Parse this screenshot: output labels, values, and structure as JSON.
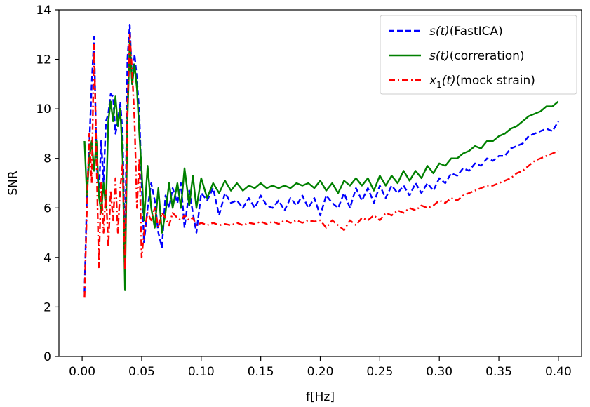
{
  "chart_data": {
    "type": "line",
    "title": "",
    "xlabel": "f[Hz]",
    "ylabel": "SNR",
    "xlim": [
      -0.0195,
      0.4195
    ],
    "ylim": [
      0,
      14
    ],
    "xticks": [
      0.0,
      0.05,
      0.1,
      0.15,
      0.2,
      0.25,
      0.3,
      0.35,
      0.4
    ],
    "xtick_labels": [
      "0.00",
      "0.05",
      "0.10",
      "0.15",
      "0.20",
      "0.25",
      "0.30",
      "0.35",
      "0.40"
    ],
    "yticks": [
      0,
      2,
      4,
      6,
      8,
      10,
      12,
      14
    ],
    "ytick_labels": [
      "0",
      "2",
      "4",
      "6",
      "8",
      "10",
      "12",
      "14"
    ],
    "grid": false,
    "legend_position": "top-right",
    "series": [
      {
        "name_prefix": "s",
        "name_arg": "(t)",
        "name_suffix": "(FastICA)",
        "color": "#0000ff",
        "style": "dashed",
        "x": [
          0.002,
          0.004,
          0.006,
          0.008,
          0.01,
          0.012,
          0.014,
          0.016,
          0.018,
          0.02,
          0.022,
          0.024,
          0.026,
          0.028,
          0.03,
          0.032,
          0.034,
          0.036,
          0.038,
          0.04,
          0.042,
          0.044,
          0.046,
          0.048,
          0.05,
          0.052,
          0.055,
          0.058,
          0.061,
          0.064,
          0.067,
          0.07,
          0.073,
          0.076,
          0.08,
          0.083,
          0.086,
          0.09,
          0.093,
          0.096,
          0.1,
          0.105,
          0.11,
          0.115,
          0.12,
          0.125,
          0.13,
          0.135,
          0.14,
          0.145,
          0.15,
          0.155,
          0.16,
          0.165,
          0.17,
          0.175,
          0.18,
          0.185,
          0.19,
          0.195,
          0.2,
          0.205,
          0.21,
          0.215,
          0.22,
          0.225,
          0.23,
          0.235,
          0.24,
          0.245,
          0.25,
          0.255,
          0.26,
          0.265,
          0.27,
          0.275,
          0.28,
          0.285,
          0.29,
          0.295,
          0.3,
          0.305,
          0.31,
          0.315,
          0.32,
          0.325,
          0.33,
          0.335,
          0.34,
          0.345,
          0.35,
          0.355,
          0.36,
          0.365,
          0.37,
          0.375,
          0.38,
          0.385,
          0.39,
          0.395,
          0.4
        ],
        "y": [
          2.6,
          6.5,
          8.5,
          11.0,
          12.9,
          8.0,
          6.5,
          8.7,
          7.0,
          9.5,
          9.8,
          10.6,
          10.5,
          9.0,
          9.5,
          10.3,
          9.0,
          4.0,
          12.0,
          13.4,
          11.0,
          12.2,
          11.2,
          9.8,
          7.0,
          4.6,
          6.0,
          7.0,
          6.3,
          5.0,
          4.4,
          6.5,
          6.0,
          6.8,
          6.2,
          7.0,
          5.2,
          6.7,
          5.8,
          5.0,
          6.6,
          6.3,
          6.8,
          5.7,
          6.6,
          6.2,
          6.3,
          6.0,
          6.4,
          6.0,
          6.5,
          6.1,
          6.0,
          6.3,
          5.9,
          6.4,
          6.1,
          6.5,
          6.0,
          6.4,
          5.7,
          6.5,
          6.2,
          6.0,
          6.6,
          6.0,
          6.8,
          6.3,
          6.8,
          6.2,
          6.9,
          6.4,
          6.9,
          6.6,
          6.9,
          6.5,
          7.0,
          6.6,
          7.0,
          6.7,
          7.2,
          7.0,
          7.4,
          7.3,
          7.6,
          7.5,
          7.8,
          7.7,
          8.0,
          7.9,
          8.1,
          8.1,
          8.4,
          8.5,
          8.6,
          8.9,
          9.0,
          9.1,
          9.2,
          9.1,
          9.5
        ]
      },
      {
        "name_prefix": "s",
        "name_arg": "(t)",
        "name_suffix": "(correration)",
        "color": "#008000",
        "style": "solid",
        "x": [
          0.002,
          0.004,
          0.006,
          0.008,
          0.01,
          0.012,
          0.014,
          0.016,
          0.018,
          0.02,
          0.022,
          0.024,
          0.026,
          0.028,
          0.03,
          0.032,
          0.034,
          0.036,
          0.038,
          0.04,
          0.042,
          0.044,
          0.046,
          0.048,
          0.05,
          0.052,
          0.055,
          0.058,
          0.061,
          0.064,
          0.067,
          0.07,
          0.073,
          0.076,
          0.08,
          0.083,
          0.086,
          0.09,
          0.093,
          0.096,
          0.1,
          0.105,
          0.11,
          0.115,
          0.12,
          0.125,
          0.13,
          0.135,
          0.14,
          0.145,
          0.15,
          0.155,
          0.16,
          0.165,
          0.17,
          0.175,
          0.18,
          0.185,
          0.19,
          0.195,
          0.2,
          0.205,
          0.21,
          0.215,
          0.22,
          0.225,
          0.23,
          0.235,
          0.24,
          0.245,
          0.25,
          0.255,
          0.26,
          0.265,
          0.27,
          0.275,
          0.28,
          0.285,
          0.29,
          0.295,
          0.3,
          0.305,
          0.31,
          0.315,
          0.32,
          0.325,
          0.33,
          0.335,
          0.34,
          0.345,
          0.35,
          0.355,
          0.36,
          0.365,
          0.37,
          0.375,
          0.38,
          0.385,
          0.39,
          0.395,
          0.4
        ],
        "y": [
          8.7,
          6.5,
          8.0,
          8.7,
          7.5,
          8.7,
          6.5,
          5.8,
          7.0,
          6.0,
          9.5,
          10.3,
          9.5,
          10.5,
          9.3,
          10.0,
          8.0,
          2.7,
          9.5,
          12.7,
          11.0,
          11.8,
          10.8,
          9.0,
          7.5,
          5.5,
          7.7,
          6.0,
          5.2,
          6.8,
          5.0,
          5.8,
          7.0,
          6.0,
          7.0,
          6.0,
          7.6,
          6.1,
          7.3,
          6.0,
          7.2,
          6.4,
          7.0,
          6.6,
          7.1,
          6.7,
          7.0,
          6.7,
          6.9,
          6.8,
          7.0,
          6.8,
          6.9,
          6.8,
          6.9,
          6.8,
          7.0,
          6.9,
          7.0,
          6.8,
          7.1,
          6.7,
          7.0,
          6.6,
          7.1,
          6.9,
          7.2,
          6.9,
          7.2,
          6.7,
          7.3,
          6.9,
          7.3,
          7.0,
          7.5,
          7.1,
          7.5,
          7.2,
          7.7,
          7.4,
          7.8,
          7.7,
          8.0,
          8.0,
          8.2,
          8.3,
          8.5,
          8.4,
          8.7,
          8.7,
          8.9,
          9.0,
          9.2,
          9.3,
          9.5,
          9.7,
          9.8,
          9.9,
          10.1,
          10.1,
          10.3
        ]
      },
      {
        "name_prefix": "x",
        "name_sub": "1",
        "name_arg": "(t)",
        "name_suffix": "(mock strain)",
        "color": "#ff0000",
        "style": "dashdot",
        "x": [
          0.002,
          0.004,
          0.006,
          0.008,
          0.01,
          0.012,
          0.014,
          0.016,
          0.018,
          0.02,
          0.022,
          0.024,
          0.026,
          0.028,
          0.03,
          0.032,
          0.034,
          0.036,
          0.038,
          0.04,
          0.042,
          0.044,
          0.046,
          0.048,
          0.05,
          0.052,
          0.055,
          0.058,
          0.061,
          0.064,
          0.067,
          0.07,
          0.073,
          0.076,
          0.08,
          0.083,
          0.086,
          0.09,
          0.093,
          0.096,
          0.1,
          0.105,
          0.11,
          0.115,
          0.12,
          0.125,
          0.13,
          0.135,
          0.14,
          0.145,
          0.15,
          0.155,
          0.16,
          0.165,
          0.17,
          0.175,
          0.18,
          0.185,
          0.19,
          0.195,
          0.2,
          0.205,
          0.21,
          0.215,
          0.22,
          0.225,
          0.23,
          0.235,
          0.24,
          0.245,
          0.25,
          0.255,
          0.26,
          0.265,
          0.27,
          0.275,
          0.28,
          0.285,
          0.29,
          0.295,
          0.3,
          0.305,
          0.31,
          0.315,
          0.32,
          0.325,
          0.33,
          0.335,
          0.34,
          0.345,
          0.35,
          0.355,
          0.36,
          0.365,
          0.37,
          0.375,
          0.38,
          0.385,
          0.39,
          0.395,
          0.4
        ],
        "y": [
          2.4,
          6.0,
          9.0,
          7.0,
          12.6,
          8.0,
          3.6,
          7.0,
          5.0,
          6.7,
          4.4,
          6.7,
          5.5,
          7.2,
          5.0,
          6.8,
          7.8,
          3.5,
          10.0,
          13.0,
          11.5,
          9.5,
          6.0,
          8.0,
          4.0,
          5.0,
          5.8,
          5.5,
          6.0,
          5.2,
          5.8,
          5.6,
          5.3,
          5.8,
          5.6,
          5.5,
          5.7,
          5.5,
          5.6,
          5.3,
          5.4,
          5.3,
          5.4,
          5.3,
          5.35,
          5.3,
          5.4,
          5.3,
          5.4,
          5.35,
          5.45,
          5.35,
          5.45,
          5.35,
          5.5,
          5.4,
          5.5,
          5.4,
          5.5,
          5.45,
          5.5,
          5.2,
          5.5,
          5.3,
          5.1,
          5.5,
          5.3,
          5.6,
          5.5,
          5.7,
          5.5,
          5.8,
          5.7,
          5.9,
          5.8,
          6.0,
          5.9,
          6.1,
          6.0,
          6.1,
          6.3,
          6.2,
          6.4,
          6.3,
          6.5,
          6.6,
          6.7,
          6.8,
          6.9,
          6.9,
          7.0,
          7.1,
          7.2,
          7.4,
          7.5,
          7.7,
          7.9,
          8.0,
          8.1,
          8.2,
          8.3
        ]
      }
    ]
  }
}
